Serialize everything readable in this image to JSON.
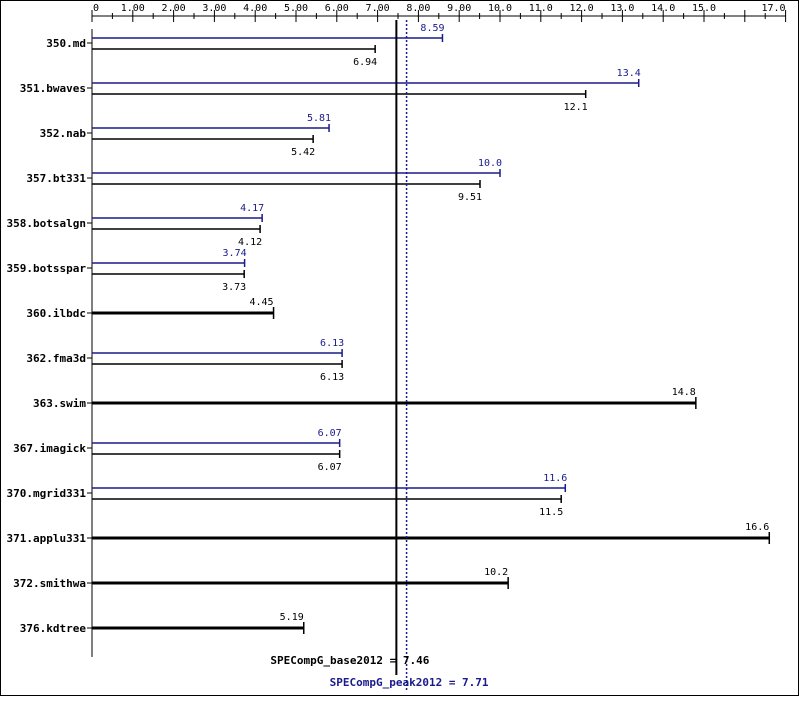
{
  "chart_data": {
    "type": "bar",
    "orientation": "horizontal",
    "title": "",
    "xlabel": "",
    "ylabel": "",
    "xlim": [
      0,
      17.0
    ],
    "x_ticks": [
      {
        "v": 0,
        "label": "0"
      },
      {
        "v": 1,
        "label": "1.00"
      },
      {
        "v": 2,
        "label": "2.00"
      },
      {
        "v": 3,
        "label": "3.00"
      },
      {
        "v": 4,
        "label": "4.00"
      },
      {
        "v": 5,
        "label": "5.00"
      },
      {
        "v": 6,
        "label": "6.00"
      },
      {
        "v": 7,
        "label": "7.00"
      },
      {
        "v": 8,
        "label": "8.00"
      },
      {
        "v": 9,
        "label": "9.00"
      },
      {
        "v": 10,
        "label": "10.0"
      },
      {
        "v": 11,
        "label": "11.0"
      },
      {
        "v": 12,
        "label": "12.0"
      },
      {
        "v": 13,
        "label": "13.0"
      },
      {
        "v": 14,
        "label": "14.0"
      },
      {
        "v": 15,
        "label": "15.0"
      },
      {
        "v": 17,
        "label": "17.0"
      }
    ],
    "categories": [
      "350.md",
      "351.bwaves",
      "352.nab",
      "357.bt331",
      "358.botsalgn",
      "359.botsspar",
      "360.ilbdc",
      "362.fma3d",
      "363.swim",
      "367.imagick",
      "370.mgrid331",
      "371.applu331",
      "372.smithwa",
      "376.kdtree"
    ],
    "series": [
      {
        "key": "peak",
        "values": [
          8.59,
          13.4,
          5.81,
          10.0,
          4.17,
          3.74,
          null,
          6.13,
          null,
          6.07,
          11.6,
          null,
          null,
          null
        ],
        "labels": [
          "8.59",
          "13.4",
          "5.81",
          "10.0",
          "4.17",
          "3.74",
          null,
          "6.13",
          null,
          "6.07",
          "11.6",
          null,
          null,
          null
        ]
      },
      {
        "key": "base",
        "values": [
          6.94,
          12.1,
          5.42,
          9.51,
          4.12,
          3.73,
          4.45,
          6.13,
          14.8,
          6.07,
          11.5,
          16.6,
          10.2,
          5.19
        ],
        "labels": [
          "6.94",
          "12.1",
          "5.42",
          "9.51",
          "4.12",
          "3.73",
          "4.45",
          "6.13",
          "14.8",
          "6.07",
          "11.5",
          "16.6",
          "10.2",
          "5.19"
        ]
      }
    ],
    "reference_lines": [
      {
        "key": "base",
        "label": "SPECompG_base2012 = 7.46",
        "value": 7.46
      },
      {
        "key": "peak",
        "label": "SPECompG_peak2012 = 7.71",
        "value": 7.71
      }
    ],
    "colors": {
      "base": "#000000",
      "peak": "#1a1a8c"
    },
    "grid": false,
    "legend": "none"
  }
}
